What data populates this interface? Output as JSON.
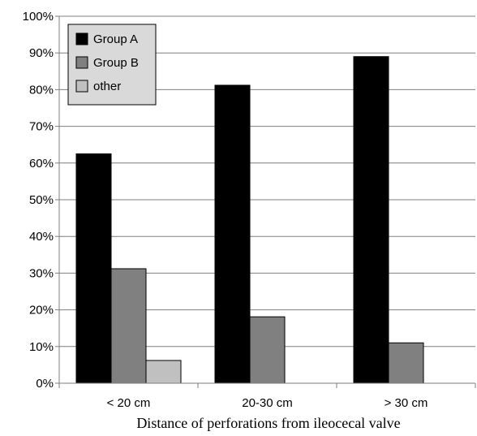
{
  "chart_data": {
    "type": "bar",
    "categories": [
      "< 20 cm",
      "20-30 cm",
      "> 30 cm"
    ],
    "series": [
      {
        "name": "Group A",
        "values": [
          62.5,
          81.2,
          89
        ],
        "color": "#000000"
      },
      {
        "name": "Group B",
        "values": [
          31.2,
          18.1,
          11
        ],
        "color": "#808080"
      },
      {
        "name": "other",
        "values": [
          6.2,
          0,
          0
        ],
        "color": "#c0c0c0"
      }
    ],
    "yticks": [
      "0%",
      "10%",
      "20%",
      "30%",
      "40%",
      "50%",
      "60%",
      "70%",
      "80%",
      "90%",
      "100%"
    ],
    "ylim": [
      0,
      100
    ],
    "xlabel": "Distance of perforations from ileocecal valve",
    "ylabel": "",
    "grid": true,
    "legend_position": "top-left"
  }
}
